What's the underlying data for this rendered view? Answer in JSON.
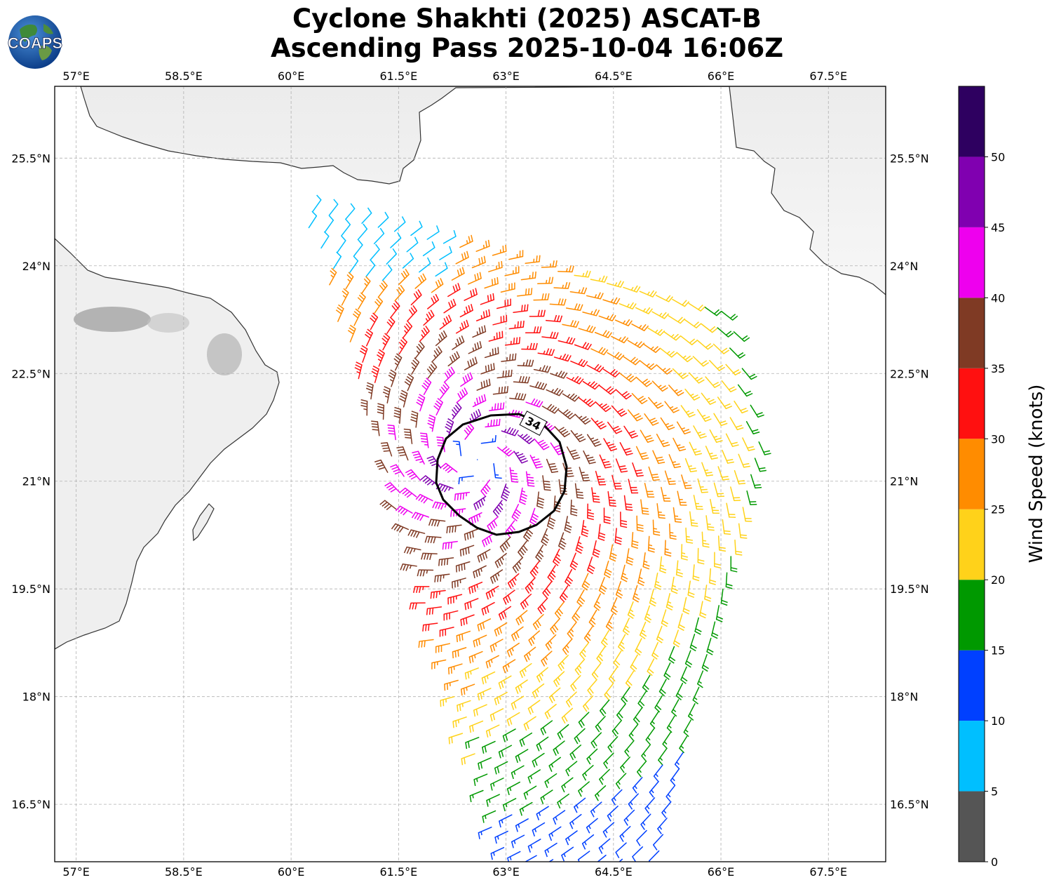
{
  "title": {
    "line1": "Cyclone Shakhti (2025) ASCAT-B",
    "line2": "Ascending Pass 2025-10-04 16:06Z"
  },
  "logo": {
    "text": "COAPS",
    "icon": "globe-icon"
  },
  "axes": {
    "lon_labels": [
      "57°E",
      "58.5°E",
      "60°E",
      "61.5°E",
      "63°E",
      "64.5°E",
      "66°E",
      "67.5°E"
    ],
    "lon_values": [
      57,
      58.5,
      60,
      61.5,
      63,
      64.5,
      66,
      67.5
    ],
    "lat_labels": [
      "25.5°N",
      "24°N",
      "22.5°N",
      "21°N",
      "19.5°N",
      "18°N",
      "16.5°N"
    ],
    "lat_values": [
      25.5,
      24,
      22.5,
      21,
      19.5,
      18,
      16.5
    ],
    "lon_range": [
      56.7,
      68.3
    ],
    "lat_range": [
      15.7,
      26.5
    ],
    "grid": true
  },
  "storm_center": {
    "lon": 62.6,
    "lat": 21.3
  },
  "contour": {
    "label": "34",
    "value_knots": 34
  },
  "colorbar": {
    "title": "Wind Speed (knots)",
    "tick_labels": [
      "0",
      "5",
      "10",
      "15",
      "20",
      "25",
      "30",
      "35",
      "40",
      "45",
      "50"
    ],
    "bins": [
      {
        "min": 0,
        "max": 5,
        "color": "#555555"
      },
      {
        "min": 5,
        "max": 10,
        "color": "#00bfff"
      },
      {
        "min": 10,
        "max": 15,
        "color": "#0040ff"
      },
      {
        "min": 15,
        "max": 20,
        "color": "#009900"
      },
      {
        "min": 20,
        "max": 25,
        "color": "#ffd21a"
      },
      {
        "min": 25,
        "max": 30,
        "color": "#ff8c00"
      },
      {
        "min": 30,
        "max": 35,
        "color": "#ff1010"
      },
      {
        "min": 35,
        "max": 40,
        "color": "#7f3a24"
      },
      {
        "min": 40,
        "max": 45,
        "color": "#ee00ee"
      },
      {
        "min": 45,
        "max": 50,
        "color": "#8000b0"
      },
      {
        "min": 50,
        "max": 55,
        "color": "#2e0060"
      }
    ]
  },
  "colors": {
    "coast": "#333333",
    "grid": "#b0b0b0",
    "frame": "#000000"
  }
}
